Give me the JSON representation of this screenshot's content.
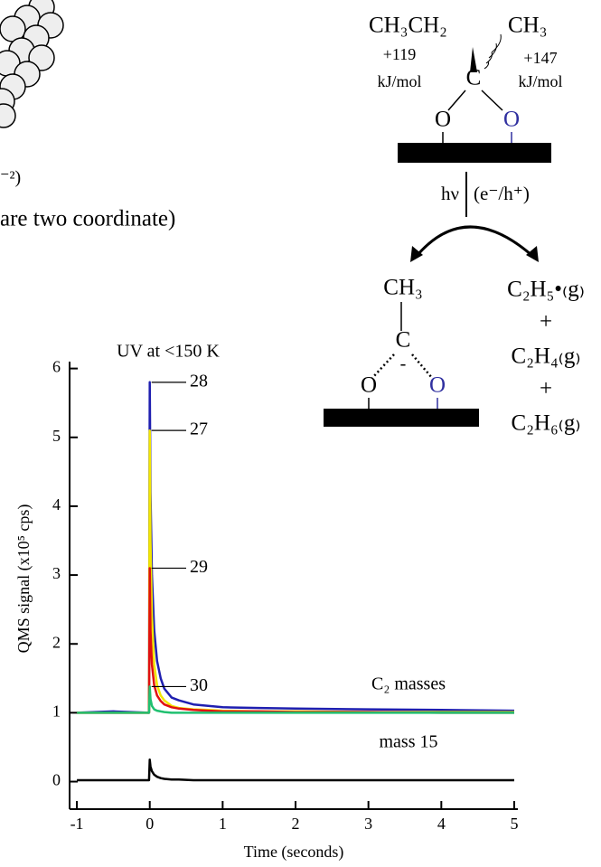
{
  "chart_data": {
    "type": "line",
    "annotation_uv": "UV at <150 K",
    "annotation_c2": "C₂ masses",
    "xlabel": "Time (seconds)",
    "ylabel": "QMS signal (x10⁵ cps)",
    "xlim": [
      -1.1,
      5.05
    ],
    "ylim": [
      -0.4,
      6.1
    ],
    "xticks": [
      -1,
      0,
      1,
      2,
      3,
      4,
      5
    ],
    "yticks": [
      0,
      1,
      2,
      3,
      4,
      5,
      6
    ],
    "grid": false,
    "x": [
      -1,
      -0.5,
      -0.01,
      0,
      0.01,
      0.03,
      0.06,
      0.1,
      0.15,
      0.2,
      0.3,
      0.4,
      0.6,
      0.8,
      1,
      1.5,
      2,
      3,
      4,
      5
    ],
    "series": [
      {
        "name": "28",
        "color": "#1f1fb0",
        "values": [
          1.0,
          1.02,
          1.0,
          5.8,
          4.2,
          3.0,
          2.2,
          1.75,
          1.5,
          1.35,
          1.22,
          1.18,
          1.12,
          1.1,
          1.08,
          1.07,
          1.06,
          1.05,
          1.04,
          1.03
        ]
      },
      {
        "name": "27",
        "color": "#f2e600",
        "values": [
          1.0,
          1.0,
          1.0,
          5.1,
          3.5,
          2.4,
          1.7,
          1.4,
          1.25,
          1.18,
          1.1,
          1.07,
          1.05,
          1.04,
          1.03,
          1.02,
          1.02,
          1.01,
          1.01,
          1.01
        ]
      },
      {
        "name": "29",
        "color": "#e01010",
        "values": [
          1.0,
          1.0,
          1.0,
          3.1,
          2.2,
          1.7,
          1.4,
          1.25,
          1.17,
          1.12,
          1.08,
          1.06,
          1.04,
          1.03,
          1.02,
          1.02,
          1.01,
          1.01,
          1.0,
          1.0
        ]
      },
      {
        "name": "30",
        "color": "#20c070",
        "values": [
          1.0,
          1.0,
          1.0,
          1.38,
          1.2,
          1.1,
          1.05,
          1.03,
          1.02,
          1.01,
          1.0,
          1.0,
          1.0,
          1.0,
          1.0,
          1.0,
          1.0,
          1.0,
          1.0,
          1.0
        ]
      },
      {
        "name": "mass 15",
        "color": "#000000",
        "values": [
          0.02,
          0.02,
          0.02,
          0.32,
          0.22,
          0.15,
          0.1,
          0.07,
          0.05,
          0.04,
          0.03,
          0.03,
          0.02,
          0.02,
          0.02,
          0.02,
          0.02,
          0.02,
          0.02,
          0.02
        ]
      }
    ]
  },
  "diagram": {
    "partial_exponent": "⁻²)",
    "partial_text": "are two coordinate)",
    "ethyl": "CH₃CH₂",
    "methyl_top": "CH₃",
    "energy_left": "+119",
    "unit_left": "kJ/mol",
    "energy_right": "+147",
    "unit_right": "kJ/mol",
    "carbon_top": "C",
    "oxygen_left_top": "O",
    "oxygen_right_top": "O",
    "photon": "hν",
    "carriers": "(e⁻/h⁺)",
    "methyl_bottom": "CH₃",
    "carbon_bottom": "C",
    "charge": "-",
    "oxygen_left_bottom": "O",
    "oxygen_right_bottom": "O",
    "product_1": "C₂H₅•₍g₎",
    "plus_1": "+",
    "product_2": "C₂H₄₍g₎",
    "plus_2": "+",
    "product_3": "C₂H₆₍g₎"
  }
}
